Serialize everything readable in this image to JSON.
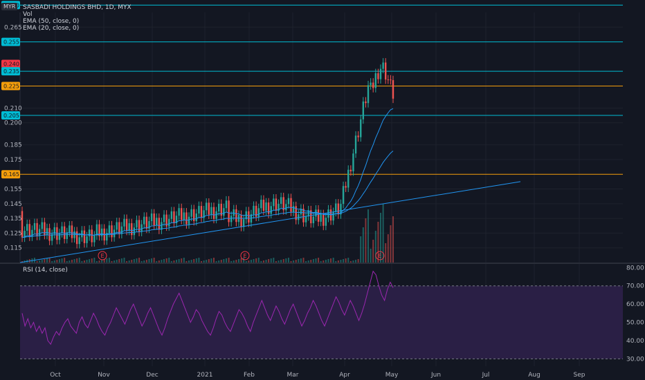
{
  "header": {
    "symbol_title": "SASBADI HOLDINGS BHD, 1D, MYX",
    "currency": "MYR",
    "indicators": [
      "Vol",
      "EMA (50, close, 0)",
      "EMA (20, close, 0)"
    ],
    "rsi_label": "RSI (14, close)"
  },
  "colors": {
    "background": "#131722",
    "up": "#26a69a",
    "down": "#ef5350",
    "cyan_level": "#00bcd4",
    "orange_level": "#f59e0b",
    "trendline": "#2196f3",
    "rsi": "#9c27b0",
    "rsi_band": "#2a1f45",
    "price_tag": "#f23645"
  },
  "chart_data": [
    {
      "type": "candlestick",
      "title": "SASBADI HOLDINGS BHD, 1D, MYX",
      "y_ticks": [
        0.115,
        0.125,
        0.135,
        0.145,
        0.155,
        0.175,
        0.185,
        0.2,
        0.21,
        0.265
      ],
      "ylim": [
        0.105,
        0.275
      ],
      "x_ticks": [
        "Oct",
        "Nov",
        "Dec",
        "2021",
        "Feb",
        "Mar",
        "Apr",
        "May",
        "Jun",
        "Jul",
        "Aug",
        "Sep"
      ],
      "price_tags": [
        {
          "value": "0.280",
          "color": "cyan"
        },
        {
          "value": "0.255",
          "color": "cyan"
        },
        {
          "value": "0.240",
          "color": "red"
        },
        {
          "value": "0.235",
          "color": "cyan"
        },
        {
          "value": "0.225",
          "color": "orange"
        },
        {
          "value": "0.205",
          "color": "cyan"
        },
        {
          "value": "0.165",
          "color": "orange"
        }
      ],
      "horizontal_levels": [
        0.28,
        0.255,
        0.235,
        0.205
      ],
      "orange_levels": [
        0.225,
        0.165
      ],
      "trendline": {
        "from": {
          "x": "Sep",
          "y": 0.105
        },
        "to": {
          "x": "Jul",
          "y": 0.16
        }
      },
      "earnings_markers": [
        "E",
        "E",
        "E"
      ],
      "series": [
        {
          "name": "EMA (50, close, 0)"
        },
        {
          "name": "EMA (20, close, 0)"
        }
      ]
    },
    {
      "type": "line",
      "title": "RSI (14, close)",
      "y_ticks": [
        30.0,
        40.0,
        50.0,
        60.0,
        70.0,
        80.0
      ],
      "ylim": [
        26,
        82
      ],
      "bands": [
        30,
        70
      ],
      "values": [
        55,
        48,
        52,
        47,
        50,
        45,
        48,
        44,
        47,
        40,
        38,
        42,
        45,
        43,
        47,
        50,
        52,
        48,
        46,
        44,
        50,
        53,
        49,
        47,
        51,
        55,
        52,
        48,
        45,
        43,
        47,
        50,
        54,
        58,
        55,
        52,
        49,
        53,
        57,
        60,
        56,
        52,
        48,
        51,
        55,
        58,
        54,
        50,
        46,
        43,
        47,
        52,
        56,
        60,
        63,
        66,
        62,
        58,
        54,
        50,
        53,
        57,
        55,
        51,
        48,
        45,
        43,
        47,
        52,
        56,
        54,
        50,
        47,
        45,
        49,
        53,
        57,
        55,
        52,
        48,
        45,
        50,
        54,
        58,
        62,
        58,
        54,
        51,
        55,
        59,
        56,
        52,
        49,
        53,
        57,
        60,
        56,
        52,
        48,
        51,
        55,
        58,
        62,
        59,
        55,
        51,
        48,
        52,
        56,
        60,
        64,
        61,
        57,
        54,
        58,
        62,
        59,
        55,
        51,
        55,
        60,
        66,
        72,
        78,
        76,
        70,
        65,
        62,
        68,
        72,
        69
      ]
    }
  ]
}
